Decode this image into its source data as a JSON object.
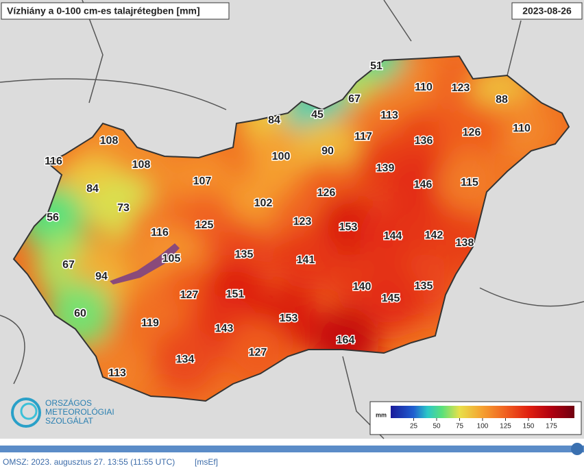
{
  "map": {
    "title": "Vízhiány a 0-100 cm-es talajrétegben [mm]",
    "date": "2023-08-26",
    "values": [
      51,
      110,
      123,
      67,
      88,
      84,
      45,
      113,
      110,
      108,
      117,
      136,
      126,
      116,
      108,
      100,
      90,
      139,
      107,
      146,
      115,
      84,
      102,
      126,
      73,
      56,
      116,
      125,
      123,
      153,
      144,
      142,
      138,
      105,
      135,
      141,
      67,
      94,
      140,
      135,
      127,
      151,
      145,
      60,
      119,
      153,
      143,
      164,
      127,
      134,
      113
    ],
    "legend": {
      "unit": "mm",
      "range": [
        0,
        200
      ],
      "ticks": [
        25,
        50,
        75,
        100,
        125,
        150,
        175
      ]
    },
    "logo": [
      "ORSZÁGOS",
      "METEOROLÓGIAI",
      "SZOLGÁLAT"
    ],
    "footer": {
      "text": "OMSZ: 2023. augusztus 27. 13:55 (11:55  UTC)",
      "tag": "[msEf]"
    }
  }
}
